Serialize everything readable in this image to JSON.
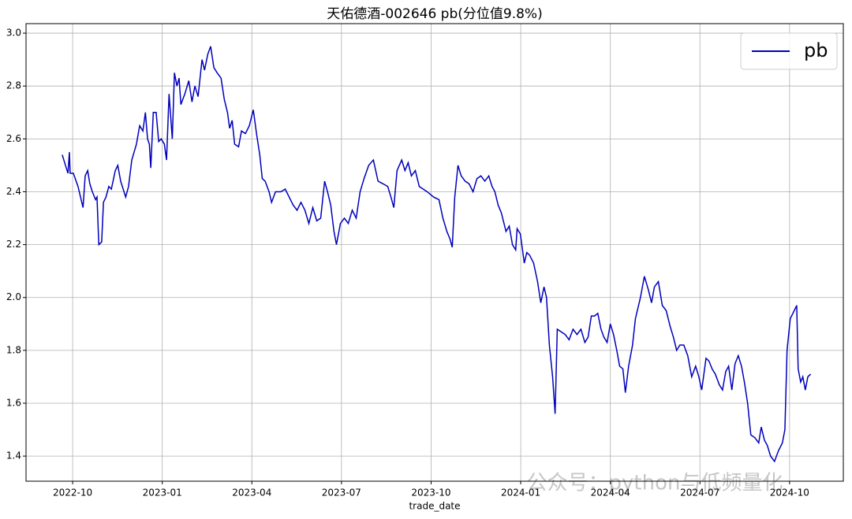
{
  "chart_data": {
    "type": "line",
    "title": "天佑德酒-002646 pb(分位值9.8%)",
    "x_label": "trade_date",
    "watermark": "公众号：python与低频量化",
    "legend": "upper right",
    "grid": true,
    "xlim": [
      2022.62,
      2024.9
    ],
    "ylim": [
      1.305,
      3.036
    ],
    "xticks": [
      {
        "value": 2022.75,
        "label": "2022-10"
      },
      {
        "value": 2023,
        "label": "2023-01"
      },
      {
        "value": 2023.25,
        "label": "2023-04"
      },
      {
        "value": 2023.5,
        "label": "2023-07"
      },
      {
        "value": 2023.75,
        "label": "2023-10"
      },
      {
        "value": 2024,
        "label": "2024-01"
      },
      {
        "value": 2024.25,
        "label": "2024-04"
      },
      {
        "value": 2024.5,
        "label": "2024-07"
      },
      {
        "value": 2024.75,
        "label": "2024-10"
      }
    ],
    "yticks": [
      {
        "value": 1.4,
        "label": "1.4"
      },
      {
        "value": 1.6,
        "label": "1.6"
      },
      {
        "value": 1.8,
        "label": "1.8"
      },
      {
        "value": 2,
        "label": "2.0"
      },
      {
        "value": 2.2,
        "label": "2.2"
      },
      {
        "value": 2.4,
        "label": "2.4"
      },
      {
        "value": 2.6,
        "label": "2.6"
      },
      {
        "value": 2.8,
        "label": "2.8"
      },
      {
        "value": 3,
        "label": "3.0"
      }
    ],
    "x": [
      2022.721,
      2022.73,
      2022.737,
      2022.741,
      2022.743,
      2022.752,
      2022.765,
      2022.779,
      2022.785,
      2022.792,
      2022.798,
      2022.805,
      2022.814,
      2022.818,
      2022.823,
      2022.831,
      2022.836,
      2022.843,
      2022.851,
      2022.858,
      2022.869,
      2022.876,
      2022.884,
      2022.898,
      2022.906,
      2022.915,
      2022.928,
      2022.937,
      2022.946,
      2022.953,
      2022.959,
      2022.964,
      2022.968,
      2022.975,
      2022.983,
      2022.99,
      2022.997,
      2023.006,
      2023.012,
      2023.019,
      2023.028,
      2023.034,
      2023.041,
      2023.047,
      2023.052,
      2023.063,
      2023.074,
      2023.083,
      2023.091,
      2023.1,
      2023.111,
      2023.118,
      2023.127,
      2023.135,
      2023.144,
      2023.153,
      2023.164,
      2023.173,
      2023.182,
      2023.188,
      2023.195,
      2023.202,
      2023.213,
      2023.221,
      2023.232,
      2023.243,
      2023.254,
      2023.263,
      2023.272,
      2023.279,
      2023.287,
      2023.298,
      2023.305,
      2023.316,
      2023.331,
      2023.343,
      2023.354,
      2023.365,
      2023.376,
      2023.387,
      2023.398,
      2023.409,
      2023.42,
      2023.431,
      2023.442,
      2023.453,
      2023.461,
      2023.47,
      2023.479,
      2023.486,
      2023.497,
      2023.508,
      2023.519,
      2023.53,
      2023.541,
      2023.552,
      2023.563,
      2023.576,
      2023.589,
      2023.602,
      2023.616,
      2023.629,
      2023.638,
      2023.646,
      2023.655,
      2023.668,
      2023.677,
      2023.686,
      2023.695,
      2023.706,
      2023.717,
      2023.728,
      2023.739,
      2023.757,
      2023.772,
      2023.783,
      2023.794,
      2023.803,
      2023.809,
      2023.816,
      2023.825,
      2023.834,
      2023.845,
      2023.856,
      2023.867,
      2023.878,
      2023.889,
      2023.9,
      2023.911,
      2023.92,
      2023.928,
      2023.937,
      2023.946,
      2023.959,
      2023.968,
      2023.977,
      2023.986,
      2023.99,
      2023.999,
      2024.01,
      2024.017,
      2024.025,
      2024.036,
      2024.047,
      2024.056,
      2024.065,
      2024.072,
      2024.08,
      2024.089,
      2024.096,
      2024.102,
      2024.113,
      2024.124,
      2024.135,
      2024.146,
      2024.157,
      2024.168,
      2024.179,
      2024.188,
      2024.197,
      2024.206,
      2024.215,
      2024.224,
      2024.232,
      2024.241,
      2024.25,
      2024.259,
      2024.268,
      2024.276,
      2024.285,
      2024.292,
      2024.301,
      2024.312,
      2024.32,
      2024.334,
      2024.345,
      2024.356,
      2024.365,
      2024.373,
      2024.384,
      2024.395,
      2024.406,
      2024.417,
      2024.426,
      2024.435,
      2024.444,
      2024.455,
      2024.466,
      2024.477,
      2024.488,
      2024.497,
      2024.505,
      2024.517,
      2024.525,
      2024.534,
      2024.543,
      2024.554,
      2024.563,
      2024.572,
      2024.58,
      2024.589,
      2024.598,
      2024.607,
      2024.616,
      2024.624,
      2024.633,
      2024.642,
      2024.653,
      2024.664,
      2024.671,
      2024.68,
      2024.688,
      2024.697,
      2024.708,
      2024.719,
      2024.73,
      2024.737,
      2024.743,
      2024.752,
      2024.763,
      2024.77,
      2024.774,
      2024.781,
      2024.787,
      2024.794,
      2024.801,
      2024.809
    ],
    "series": [
      {
        "name": "pb",
        "color": "#0000bb",
        "values": [
          2.54,
          2.5,
          2.47,
          2.55,
          2.47,
          2.47,
          2.42,
          2.34,
          2.46,
          2.48,
          2.43,
          2.4,
          2.37,
          2.38,
          2.2,
          2.21,
          2.36,
          2.38,
          2.42,
          2.41,
          2.48,
          2.5,
          2.44,
          2.38,
          2.42,
          2.52,
          2.58,
          2.65,
          2.63,
          2.7,
          2.6,
          2.58,
          2.49,
          2.7,
          2.7,
          2.59,
          2.6,
          2.58,
          2.52,
          2.77,
          2.6,
          2.85,
          2.8,
          2.83,
          2.73,
          2.77,
          2.82,
          2.74,
          2.8,
          2.76,
          2.9,
          2.86,
          2.92,
          2.95,
          2.87,
          2.85,
          2.83,
          2.75,
          2.7,
          2.64,
          2.67,
          2.58,
          2.57,
          2.63,
          2.62,
          2.65,
          2.71,
          2.62,
          2.54,
          2.45,
          2.44,
          2.4,
          2.36,
          2.4,
          2.4,
          2.41,
          2.38,
          2.35,
          2.33,
          2.36,
          2.33,
          2.28,
          2.34,
          2.29,
          2.3,
          2.44,
          2.4,
          2.35,
          2.25,
          2.2,
          2.28,
          2.3,
          2.28,
          2.33,
          2.3,
          2.4,
          2.45,
          2.5,
          2.52,
          2.44,
          2.43,
          2.42,
          2.38,
          2.34,
          2.48,
          2.52,
          2.48,
          2.51,
          2.46,
          2.48,
          2.42,
          2.41,
          2.4,
          2.38,
          2.37,
          2.3,
          2.25,
          2.22,
          2.19,
          2.38,
          2.5,
          2.46,
          2.44,
          2.43,
          2.4,
          2.45,
          2.46,
          2.44,
          2.46,
          2.42,
          2.4,
          2.35,
          2.32,
          2.25,
          2.27,
          2.2,
          2.18,
          2.26,
          2.24,
          2.13,
          2.17,
          2.16,
          2.13,
          2.06,
          1.98,
          2.04,
          2.0,
          1.82,
          1.7,
          1.56,
          1.88,
          1.87,
          1.86,
          1.84,
          1.88,
          1.86,
          1.88,
          1.83,
          1.85,
          1.93,
          1.93,
          1.94,
          1.88,
          1.85,
          1.83,
          1.9,
          1.86,
          1.8,
          1.74,
          1.73,
          1.64,
          1.74,
          1.82,
          1.92,
          2.0,
          2.08,
          2.03,
          1.98,
          2.04,
          2.06,
          1.97,
          1.95,
          1.89,
          1.85,
          1.8,
          1.82,
          1.82,
          1.78,
          1.7,
          1.74,
          1.7,
          1.65,
          1.77,
          1.76,
          1.73,
          1.71,
          1.67,
          1.65,
          1.72,
          1.74,
          1.65,
          1.75,
          1.78,
          1.74,
          1.68,
          1.6,
          1.48,
          1.47,
          1.45,
          1.51,
          1.46,
          1.44,
          1.4,
          1.38,
          1.42,
          1.45,
          1.5,
          1.8,
          1.92,
          1.95,
          1.97,
          1.73,
          1.68,
          1.7,
          1.65,
          1.7,
          1.71
        ]
      }
    ]
  }
}
